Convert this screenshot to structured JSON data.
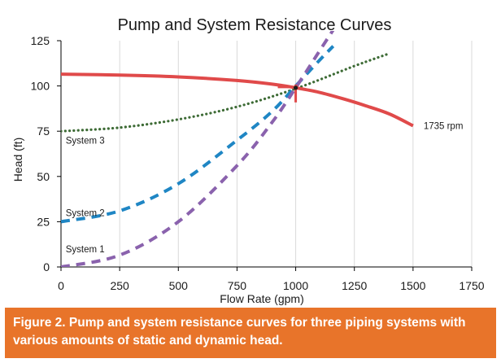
{
  "chart_data": {
    "type": "line",
    "title": "Pump and System Resistance Curves",
    "xlabel": "Flow Rate (gpm)",
    "ylabel": "Head (ft)",
    "xlim": [
      0,
      1750
    ],
    "ylim": [
      0,
      125
    ],
    "xticks": [
      0,
      250,
      500,
      750,
      1000,
      1250,
      1500,
      1750
    ],
    "yticks": [
      0,
      25,
      50,
      75,
      100,
      125
    ],
    "grid": "vertical",
    "series": [
      {
        "name": "1735 rpm",
        "style": "solid",
        "color": "#e04a4a",
        "x": [
          0,
          250,
          500,
          750,
          900,
          1000,
          1100,
          1200,
          1300,
          1400,
          1500
        ],
        "y": [
          106.5,
          106,
          105,
          103,
          101,
          99,
          96.5,
          93,
          89,
          84.5,
          78
        ]
      },
      {
        "name": "System 3",
        "style": "dotted",
        "color": "#3d6b35",
        "x": [
          0,
          250,
          500,
          750,
          1000,
          1250,
          1400
        ],
        "y": [
          75,
          77,
          81.5,
          88.5,
          98.5,
          111,
          118
        ]
      },
      {
        "name": "System 2",
        "style": "dashed",
        "color": "#1f86c4",
        "x": [
          0,
          250,
          500,
          750,
          900,
          1000,
          1100,
          1160
        ],
        "y": [
          25,
          31,
          46,
          70,
          86,
          100,
          114,
          122
        ]
      },
      {
        "name": "System 1",
        "style": "dashed",
        "color": "#8a62ad",
        "x": [
          0,
          250,
          500,
          750,
          900,
          1000,
          1100,
          1170
        ],
        "y": [
          0,
          6.5,
          25,
          56,
          80,
          99,
          119,
          133
        ]
      }
    ],
    "annotations": [
      {
        "text": "1735 rpm",
        "x": 1545,
        "y": 78
      },
      {
        "text": "System 3",
        "x": 20,
        "y": 70
      },
      {
        "text": "System 2",
        "x": 20,
        "y": 30
      },
      {
        "text": "System 1",
        "x": 20,
        "y": 10
      }
    ],
    "operating_point": {
      "x": 1000,
      "y": 99
    }
  },
  "caption": "Figure 2. Pump and system resistance curves for three piping systems with various amounts of static and dynamic head.",
  "colors": {
    "caption_bg": "#e8742a",
    "caption_text": "#ffffff",
    "axis": "#000000",
    "grid": "#d9d9d9",
    "marker": "#e04a4a"
  }
}
